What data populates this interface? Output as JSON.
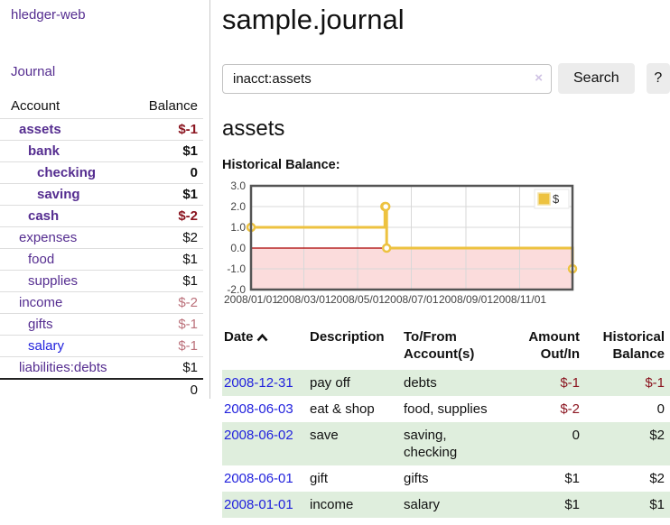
{
  "colors": {
    "link_purple": "#552d90",
    "link_blue": "#2222dd",
    "negative_dark": "#8b1520",
    "negative_muted": "#bb707a",
    "row_stripe_green": "#dfeedd",
    "chart_line_gold": "#edc240",
    "chart_negative_fill": "#fbdcdc",
    "chart_zero_line": "#aa0000"
  },
  "sidebar": {
    "app_title": "hledger-web",
    "nav": {
      "journal_label": "Journal"
    },
    "accounts_table": {
      "headers": {
        "account": "Account",
        "balance": "Balance"
      },
      "rows": [
        {
          "account": "assets",
          "balance": "$-1",
          "level": 1,
          "bold": true,
          "balance_tone": "negative"
        },
        {
          "account": "bank",
          "balance": "$1",
          "level": 2,
          "bold": true,
          "balance_tone": "normal"
        },
        {
          "account": "checking",
          "balance": "0",
          "level": 3,
          "bold": true,
          "balance_tone": "normal"
        },
        {
          "account": "saving",
          "balance": "$1",
          "level": 3,
          "bold": true,
          "balance_tone": "normal"
        },
        {
          "account": "cash",
          "balance": "$-2",
          "level": 2,
          "bold": true,
          "balance_tone": "negative"
        },
        {
          "account": "expenses",
          "balance": "$2",
          "level": 1,
          "bold": false,
          "balance_tone": "normal"
        },
        {
          "account": "food",
          "balance": "$1",
          "level": 2,
          "bold": false,
          "balance_tone": "normal"
        },
        {
          "account": "supplies",
          "balance": "$1",
          "level": 2,
          "bold": false,
          "balance_tone": "normal"
        },
        {
          "account": "income",
          "balance": "$-2",
          "level": 1,
          "bold": false,
          "balance_tone": "negative-muted"
        },
        {
          "account": "gifts",
          "balance": "$-1",
          "level": 2,
          "bold": false,
          "balance_tone": "negative-muted"
        },
        {
          "account": "salary",
          "balance": "$-1",
          "level": 2,
          "bold": false,
          "balance_tone": "negative-muted",
          "link_tone": "unvisited"
        },
        {
          "account": "liabilities:debts",
          "balance": "$1",
          "level": 1,
          "bold": false,
          "balance_tone": "normal"
        }
      ],
      "total": "0"
    }
  },
  "main": {
    "title": "sample.journal",
    "search": {
      "value": "inacct:assets",
      "clear_icon": "×",
      "button_label": "Search",
      "help_label": "?"
    },
    "section_title": "assets",
    "register": {
      "headers": [
        "Date",
        "Description",
        "To/From Account(s)",
        "Amount Out/In",
        "Historical Balance"
      ],
      "sort": {
        "column": "Date",
        "direction": "ascending"
      },
      "rows": [
        {
          "date": "2008-12-31",
          "description": "pay off",
          "accounts": "debts",
          "amount": "$-1",
          "balance": "$-1"
        },
        {
          "date": "2008-06-03",
          "description": "eat & shop",
          "accounts": "food, supplies",
          "amount": "$-2",
          "balance": "0"
        },
        {
          "date": "2008-06-02",
          "description": "save",
          "accounts": "saving, checking",
          "amount": "0",
          "balance": "$2"
        },
        {
          "date": "2008-06-01",
          "description": "gift",
          "accounts": "gifts",
          "amount": "$1",
          "balance": "$2"
        },
        {
          "date": "2008-01-01",
          "description": "income",
          "accounts": "salary",
          "amount": "$1",
          "balance": "$1"
        }
      ]
    }
  },
  "chart_data": {
    "type": "line",
    "step": true,
    "title": "Historical Balance:",
    "series": [
      {
        "name": "$",
        "points": [
          [
            "2008-01-01",
            1
          ],
          [
            "2008-06-01",
            2
          ],
          [
            "2008-06-02",
            2
          ],
          [
            "2008-06-03",
            0
          ],
          [
            "2008-12-31",
            -1
          ]
        ]
      }
    ],
    "x_range": [
      "2008-01-01",
      "2008-12-31"
    ],
    "x_ticks": [
      {
        "date": "2008-01-01",
        "label": "2008/01/01"
      },
      {
        "date": "2008-03-01",
        "label": "2008/03/01"
      },
      {
        "date": "2008-05-01",
        "label": "2008/05/01"
      },
      {
        "date": "2008-07-01",
        "label": "2008/07/01"
      },
      {
        "date": "2008-09-01",
        "label": "2008/09/01"
      },
      {
        "date": "2008-11-01",
        "label": "2008/11/01"
      }
    ],
    "ylim": [
      -2,
      3
    ],
    "y_ticks": [
      {
        "v": 3,
        "label": "3.0"
      },
      {
        "v": 2,
        "label": "2.0"
      },
      {
        "v": 1,
        "label": "1.0"
      },
      {
        "v": 0,
        "label": "0.0"
      },
      {
        "v": -1,
        "label": "-1.0"
      },
      {
        "v": -2,
        "label": "-2.0"
      }
    ],
    "grid": true,
    "legend": {
      "position": "top-right",
      "entries": [
        {
          "label": "$",
          "color": "#edc240"
        }
      ]
    },
    "line_color": "#edc240",
    "marker": "open-circle",
    "zero_line_color": "#aa0000",
    "negative_region_fill": "#fbdcdc"
  }
}
